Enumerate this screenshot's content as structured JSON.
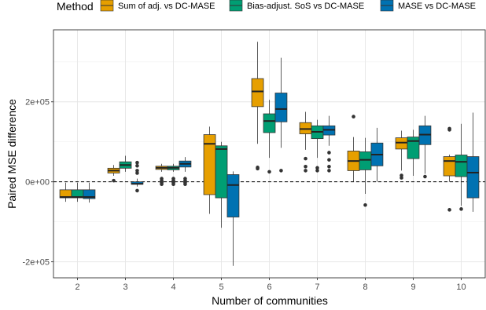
{
  "chart_data": {
    "type": "boxplot",
    "xlabel": "Number of communities",
    "ylabel": "Paired MSE difference",
    "ylim": [
      -240000,
      380000
    ],
    "yticks": [
      -200000,
      0,
      200000
    ],
    "ytick_labels": [
      "-2e+05",
      "0e+00",
      "2e+05"
    ],
    "reference_line": {
      "y": 0,
      "style": "dashed"
    },
    "grid": true,
    "legend": {
      "title": "Method",
      "position": "top",
      "entries": [
        "Sum of adj. vs DC-MASE",
        "Bias-adjust. SoS vs DC-MASE",
        "MASE vs DC-MASE"
      ]
    },
    "colors": [
      "#E69F00",
      "#009E73",
      "#0072B2"
    ],
    "categories": [
      "2",
      "3",
      "4",
      "5",
      "6",
      "7",
      "8",
      "9",
      "10"
    ],
    "series": [
      {
        "name": "Sum of adj. vs DC-MASE",
        "boxes": [
          {
            "min": -50000,
            "q1": -40000,
            "median": -38000,
            "q3": -20000,
            "max": -2000,
            "outliers": []
          },
          {
            "min": 15000,
            "q1": 22000,
            "median": 28000,
            "q3": 34000,
            "max": 42000,
            "outliers": [
              3000
            ]
          },
          {
            "min": 25000,
            "q1": 31000,
            "median": 35000,
            "q3": 39000,
            "max": 45000,
            "outliers": [
              8000,
              3000,
              0,
              -2000,
              -6000
            ]
          },
          {
            "min": -80000,
            "q1": -32000,
            "median": 95000,
            "q3": 118000,
            "max": 138000,
            "outliers": []
          },
          {
            "min": 95000,
            "q1": 188000,
            "median": 226000,
            "q3": 258000,
            "max": 350000,
            "outliers": [
              36000,
              33000
            ]
          },
          {
            "min": 80000,
            "q1": 120000,
            "median": 132000,
            "q3": 148000,
            "max": 175000,
            "outliers": [
              58000,
              38000,
              28000
            ]
          },
          {
            "min": 0,
            "q1": 28000,
            "median": 52000,
            "q3": 77000,
            "max": 112000,
            "outliers": [
              163000
            ]
          },
          {
            "min": 28000,
            "q1": 82000,
            "median": 98000,
            "q3": 110000,
            "max": 128000,
            "outliers": [
              16000,
              10000
            ]
          },
          {
            "min": 0,
            "q1": 15000,
            "median": 52000,
            "q3": 63000,
            "max": 68000,
            "outliers": [
              133000,
              130000,
              -70000
            ]
          }
        ]
      },
      {
        "name": "Bias-adjust. SoS vs DC-MASE",
        "boxes": [
          {
            "min": -50000,
            "q1": -40000,
            "median": -38000,
            "q3": -20000,
            "max": -2000,
            "outliers": []
          },
          {
            "min": 25000,
            "q1": 34000,
            "median": 42000,
            "q3": 50000,
            "max": 65000,
            "outliers": []
          },
          {
            "min": 25000,
            "q1": 30000,
            "median": 35000,
            "q3": 39000,
            "max": 45000,
            "outliers": [
              8000,
              3000,
              0,
              -2000,
              -6000
            ]
          },
          {
            "min": -115000,
            "q1": -40000,
            "median": 82000,
            "q3": 90000,
            "max": 100000,
            "outliers": []
          },
          {
            "min": 60000,
            "q1": 123000,
            "median": 152000,
            "q3": 170000,
            "max": 205000,
            "outliers": [
              25000
            ]
          },
          {
            "min": 60000,
            "q1": 108000,
            "median": 125000,
            "q3": 140000,
            "max": 155000,
            "outliers": [
              35000,
              28000
            ]
          },
          {
            "min": -30000,
            "q1": 30000,
            "median": 55000,
            "q3": 75000,
            "max": 110000,
            "outliers": [
              -58000
            ]
          },
          {
            "min": 15000,
            "q1": 58000,
            "median": 102000,
            "q3": 112000,
            "max": 130000,
            "outliers": []
          },
          {
            "min": -60000,
            "q1": 13000,
            "median": 50000,
            "q3": 67000,
            "max": 145000,
            "outliers": [
              -68000
            ]
          }
        ]
      },
      {
        "name": "MASE vs DC-MASE",
        "boxes": [
          {
            "min": -52000,
            "q1": -42000,
            "median": -38000,
            "q3": -20000,
            "max": -2000,
            "outliers": []
          },
          {
            "min": -12000,
            "q1": -6000,
            "median": -5000,
            "q3": 0,
            "max": 8000,
            "outliers": [
              48000,
              40000,
              28000,
              22000,
              -22000
            ]
          },
          {
            "min": 25000,
            "q1": 37000,
            "median": 45000,
            "q3": 52000,
            "max": 62000,
            "outliers": [
              8000,
              3000,
              0,
              -2000,
              -6000
            ]
          },
          {
            "min": -210000,
            "q1": -88000,
            "median": -8000,
            "q3": 18000,
            "max": 26000,
            "outliers": []
          },
          {
            "min": 85000,
            "q1": 150000,
            "median": 182000,
            "q3": 222000,
            "max": 310000,
            "outliers": [
              28000
            ]
          },
          {
            "min": 90000,
            "q1": 117000,
            "median": 130000,
            "q3": 140000,
            "max": 165000,
            "outliers": [
              73000,
              55000,
              38000,
              28000
            ]
          },
          {
            "min": 0,
            "q1": 40000,
            "median": 68000,
            "q3": 97000,
            "max": 135000,
            "outliers": []
          },
          {
            "min": 20000,
            "q1": 93000,
            "median": 118000,
            "q3": 140000,
            "max": 165000,
            "outliers": [
              13000
            ]
          },
          {
            "min": -75000,
            "q1": -40000,
            "median": 23000,
            "q3": 63000,
            "max": 173000,
            "outliers": []
          }
        ]
      }
    ]
  }
}
